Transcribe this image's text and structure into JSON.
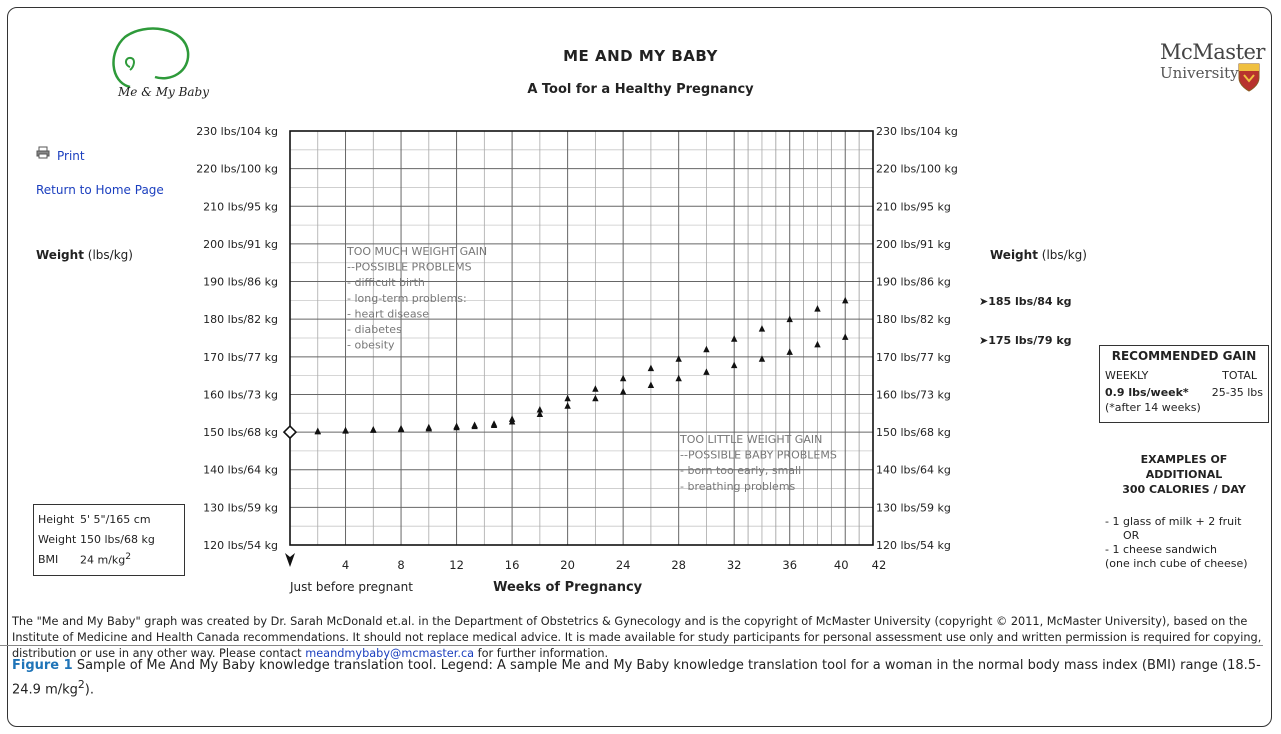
{
  "header": {
    "logo_text": "Me & My Baby",
    "title": "ME AND MY BABY",
    "subtitle": "A Tool for a Healthy Pregnancy",
    "university_line1": "McMaster",
    "university_line2": "University"
  },
  "links": {
    "print": "Print",
    "home": "Return to Home Page"
  },
  "weight_label_bold": "Weight",
  "weight_label_unit": "(lbs/kg)",
  "targets": {
    "upper": "185 lbs/84 kg",
    "lower": "175 lbs/79 kg"
  },
  "patient": {
    "height_label": "Height",
    "height_value": "5' 5\"/165 cm",
    "weight_label": "Weight",
    "weight_value": "150 lbs/68 kg",
    "bmi_label": "BMI",
    "bmi_value": "24 m/kg",
    "bmi_sup": "2"
  },
  "recommended": {
    "title": "RECOMMENDED GAIN",
    "weekly_label": "WEEKLY",
    "total_label": "TOTAL",
    "weekly_value": "0.9 lbs/week*",
    "total_value": "25-35 lbs",
    "note": "(*after 14 weeks)"
  },
  "examples": {
    "heading_1": "EXAMPLES OF",
    "heading_2": "ADDITIONAL",
    "heading_3": "300 CALORIES / DAY",
    "item1": "- 1 glass of milk + 2 fruit",
    "or": "OR",
    "item2": "- 1 cheese sandwich",
    "item2_detail": "(one inch cube of cheese)"
  },
  "footer": {
    "text_before": "The \"Me and My Baby\" graph was created by Dr. Sarah McDonald et.al. in the Department of Obstetrics & Gynecology and is the copyright of McMaster University (copyright © 2011, McMaster University), based on the Institute of Medicine and Health Canada recommendations. It should not replace medical advice. It is made available for study participants for personal assessment use only and written permission is required for copying, distribution or use in any other way. Please contact ",
    "email": "meandmybaby@mcmaster.ca",
    "text_after": " for further information."
  },
  "caption": {
    "label": "Figure 1",
    "text": " Sample of Me And My Baby knowledge translation tool. Legend: A sample Me and My Baby knowledge translation tool for a woman in the normal body mass index (BMI) range (18.5-24.9 m/kg",
    "sup": "2",
    "end": ")."
  },
  "chart_data": {
    "type": "scatter",
    "xlabel": "Weeks of Pregnancy",
    "x_start_label": "Just before pregnant",
    "xlim": [
      0,
      42
    ],
    "ylim": [
      120,
      230
    ],
    "x_ticks": [
      4,
      8,
      12,
      16,
      20,
      24,
      28,
      32,
      36,
      40,
      42
    ],
    "y_ticks": [
      {
        "value": 120,
        "label": "120 lbs/54 kg"
      },
      {
        "value": 130,
        "label": "130 lbs/59 kg"
      },
      {
        "value": 140,
        "label": "140 lbs/64 kg"
      },
      {
        "value": 150,
        "label": "150 lbs/68 kg"
      },
      {
        "value": 160,
        "label": "160 lbs/73 kg"
      },
      {
        "value": 170,
        "label": "170 lbs/77 kg"
      },
      {
        "value": 180,
        "label": "180 lbs/82 kg"
      },
      {
        "value": 190,
        "label": "190 lbs/86 kg"
      },
      {
        "value": 200,
        "label": "200 lbs/91 kg"
      },
      {
        "value": 210,
        "label": "210 lbs/95 kg"
      },
      {
        "value": 220,
        "label": "220 lbs/100 kg"
      },
      {
        "value": 230,
        "label": "230 lbs/104 kg"
      }
    ],
    "start_point": {
      "x": 0,
      "y": 150
    },
    "series": [
      {
        "x": [
          2,
          4,
          6,
          8,
          10,
          12,
          13.3,
          14.7,
          16,
          18,
          20,
          22,
          24,
          26,
          28,
          30,
          32,
          34,
          36,
          38,
          40
        ],
        "y": [
          150.3,
          150.5,
          150.7,
          151,
          151.3,
          151.6,
          151.9,
          152.2,
          153.5,
          156,
          159,
          161.5,
          164.3,
          167,
          169.5,
          172,
          174.8,
          177.5,
          180,
          182.8,
          185
        ]
      },
      {
        "x": [
          2,
          4,
          6,
          8,
          10,
          12,
          13.3,
          14.7,
          16,
          18,
          20,
          22,
          24,
          26,
          28,
          30,
          32,
          34,
          36,
          38,
          40
        ],
        "y": [
          150.2,
          150.4,
          150.6,
          150.8,
          151,
          151.3,
          151.6,
          151.9,
          152.8,
          154.8,
          157,
          159,
          160.8,
          162.5,
          164.3,
          166,
          167.8,
          169.5,
          171.3,
          173.3,
          175.3
        ]
      }
    ],
    "annotations": {
      "too_much": [
        "TOO MUCH WEIGHT GAIN",
        "--POSSIBLE PROBLEMS",
        "- difficult birth",
        "- long-term problems:",
        "  - heart disease",
        "  - diabetes",
        "  - obesity"
      ],
      "too_little": [
        "TOO LITTLE WEIGHT GAIN",
        "--POSSIBLE BABY PROBLEMS",
        "- born too early, small",
        "- breathing problems"
      ]
    }
  }
}
